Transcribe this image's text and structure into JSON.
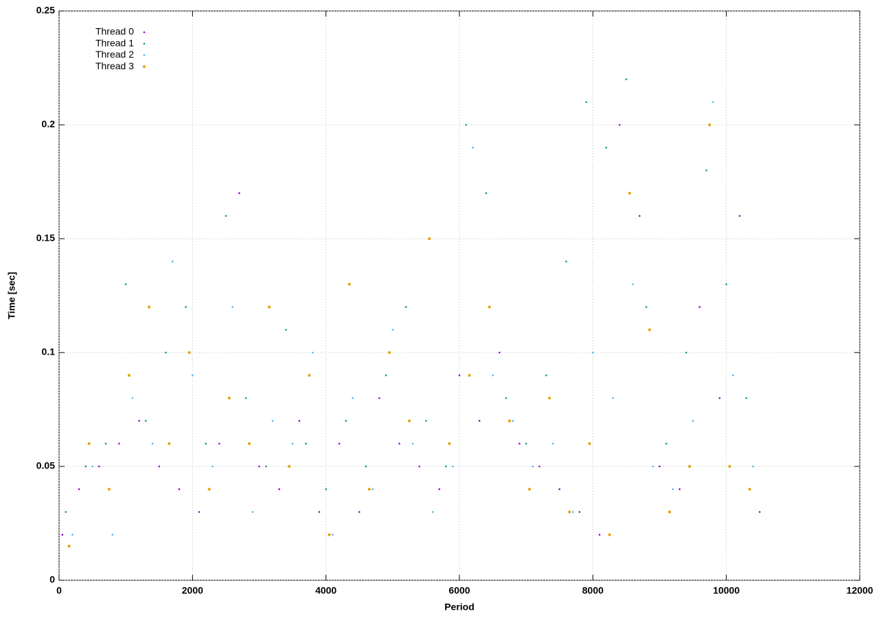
{
  "chart_data": {
    "type": "scatter",
    "xlabel": "Period",
    "ylabel": "Time [sec]",
    "xlim": [
      0,
      12000
    ],
    "ylim": [
      0,
      0.25
    ],
    "xticks": [
      0,
      2000,
      4000,
      6000,
      8000,
      10000,
      12000
    ],
    "yticks": [
      0,
      0.05,
      0.1,
      0.15,
      0.2,
      0.25
    ],
    "grid": true,
    "legend": "top-left",
    "series": [
      {
        "name": "Thread 0",
        "color": "#9400d3",
        "x": [
          50,
          300,
          600,
          900,
          1200,
          1500,
          1800,
          2100,
          2400,
          2700,
          3000,
          3300,
          3600,
          3900,
          4200,
          4500,
          4800,
          5100,
          5400,
          5700,
          6000,
          6300,
          6600,
          6900,
          7200,
          7500,
          7800,
          8100,
          8400,
          8700,
          9000,
          9300,
          9600,
          9900,
          10200,
          10500
        ],
        "values": [
          0.02,
          0.04,
          0.05,
          0.06,
          0.07,
          0.05,
          0.04,
          0.03,
          0.06,
          0.17,
          0.05,
          0.04,
          0.07,
          0.03,
          0.06,
          0.03,
          0.08,
          0.06,
          0.05,
          0.04,
          0.09,
          0.07,
          0.1,
          0.06,
          0.05,
          0.04,
          0.03,
          0.02,
          0.2,
          0.16,
          0.05,
          0.04,
          0.12,
          0.08,
          0.16,
          0.03
        ]
      },
      {
        "name": "Thread 1",
        "color": "#009e73",
        "x": [
          100,
          400,
          700,
          1000,
          1300,
          1600,
          1900,
          2200,
          2500,
          2800,
          3100,
          3400,
          3700,
          4000,
          4300,
          4600,
          4900,
          5200,
          5500,
          5800,
          6100,
          6400,
          6700,
          7000,
          7300,
          7600,
          7900,
          8200,
          8500,
          8800,
          9100,
          9400,
          9700,
          10000,
          10300
        ],
        "values": [
          0.03,
          0.05,
          0.06,
          0.13,
          0.07,
          0.1,
          0.12,
          0.06,
          0.16,
          0.08,
          0.05,
          0.11,
          0.06,
          0.04,
          0.07,
          0.05,
          0.09,
          0.12,
          0.07,
          0.05,
          0.2,
          0.17,
          0.08,
          0.06,
          0.09,
          0.14,
          0.21,
          0.19,
          0.22,
          0.12,
          0.06,
          0.1,
          0.18,
          0.13,
          0.08
        ]
      },
      {
        "name": "Thread 2",
        "color": "#56b4e9",
        "x": [
          200,
          500,
          800,
          1100,
          1400,
          1700,
          2000,
          2300,
          2600,
          2900,
          3200,
          3500,
          3800,
          4100,
          4400,
          4700,
          5000,
          5300,
          5600,
          5900,
          6200,
          6500,
          6800,
          7100,
          7400,
          7700,
          8000,
          8300,
          8600,
          8900,
          9200,
          9500,
          9800,
          10100,
          10400
        ],
        "values": [
          0.02,
          0.05,
          0.02,
          0.08,
          0.06,
          0.14,
          0.09,
          0.05,
          0.12,
          0.03,
          0.07,
          0.06,
          0.1,
          0.02,
          0.08,
          0.04,
          0.11,
          0.06,
          0.03,
          0.05,
          0.19,
          0.09,
          0.07,
          0.05,
          0.06,
          0.03,
          0.1,
          0.08,
          0.13,
          0.05,
          0.04,
          0.07,
          0.21,
          0.09,
          0.05
        ]
      },
      {
        "name": "Thread 3",
        "color": "#e69f00",
        "x": [
          150,
          450,
          750,
          1050,
          1350,
          1650,
          1950,
          2250,
          2550,
          2850,
          3150,
          3450,
          3750,
          4050,
          4350,
          4650,
          4950,
          5250,
          5550,
          5850,
          6150,
          6450,
          6750,
          7050,
          7350,
          7650,
          7950,
          8250,
          8550,
          8850,
          9150,
          9450,
          9750,
          10050,
          10350
        ],
        "values": [
          0.015,
          0.06,
          0.04,
          0.09,
          0.12,
          0.06,
          0.1,
          0.04,
          0.08,
          0.06,
          0.12,
          0.05,
          0.09,
          0.02,
          0.13,
          0.04,
          0.1,
          0.07,
          0.15,
          0.06,
          0.09,
          0.12,
          0.07,
          0.04,
          0.08,
          0.03,
          0.06,
          0.02,
          0.17,
          0.11,
          0.03,
          0.05,
          0.2,
          0.05,
          0.04
        ]
      }
    ]
  }
}
